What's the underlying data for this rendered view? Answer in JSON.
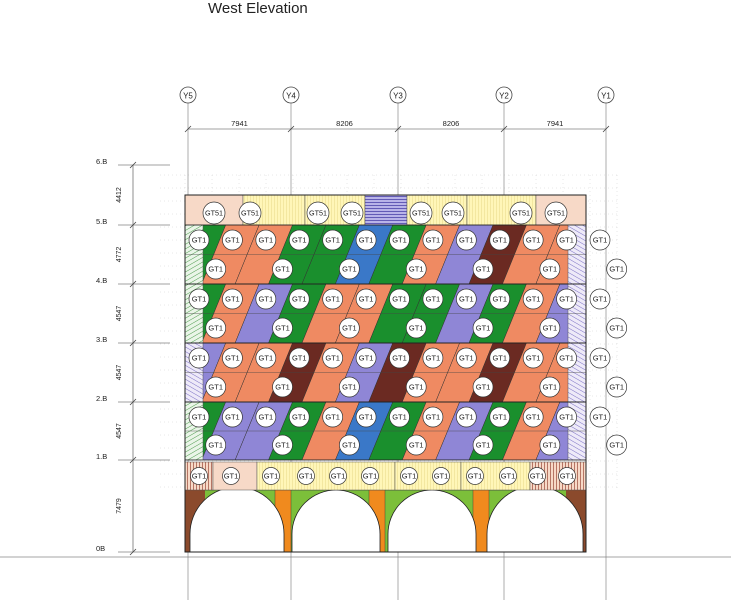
{
  "title": "West Elevation",
  "grid_axes": [
    "Y5",
    "Y4",
    "Y3",
    "Y2",
    "Y1"
  ],
  "spans": [
    "7941",
    "8206",
    "8206",
    "7941"
  ],
  "levels": [
    "0B",
    "1.B",
    "2.B",
    "3.B",
    "4.B",
    "5.B",
    "6.B"
  ],
  "level_heights": [
    "7479",
    "4547",
    "4547",
    "4547",
    "4772",
    "4412"
  ],
  "panel_tags": {
    "panel": "GT1",
    "parapet": "GT51"
  },
  "colors": {
    "orange": "#ef8a62",
    "green": "#1a8f2d",
    "purple": "#8f86d6",
    "blue": "#3a78c8",
    "maroon": "#6b2a22",
    "arch_green": "#7cbf3a",
    "pier_orange": "#f08a1e",
    "arch_brown": "#8b4a2c",
    "cream": "#fff6b8",
    "pink": "#f7d9c7",
    "hatch_green": "#4c9a4c",
    "hatch_purple": "#7a6fc4",
    "hatch_brown": "#9a4a3a"
  }
}
